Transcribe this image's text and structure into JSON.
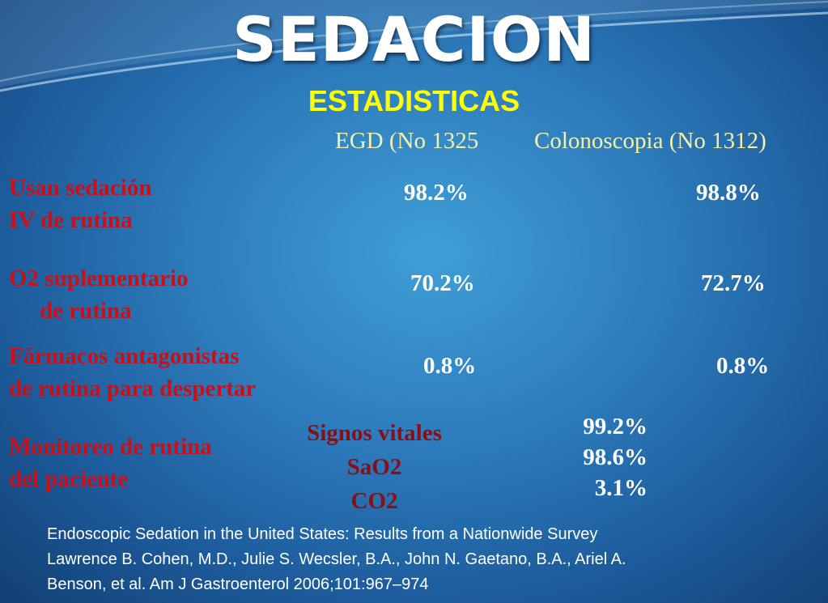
{
  "title": "SEDACION",
  "subtitle": "ESTADISTICAS",
  "columns": {
    "egd": "EGD (No 1325",
    "colon": "Colonoscopia (No 1312)"
  },
  "rows": [
    {
      "label_line1": "Usan sedación",
      "label_line2": "IV de rutina",
      "egd": "98.2%",
      "colon": "98.8%"
    },
    {
      "label_line1": "O2 suplementario",
      "label_line2": "de rutina",
      "egd": "70.2%",
      "colon": "72.7%"
    },
    {
      "label_line1": "Fármacos antagonistas",
      "label_line2": "de rutina para despertar",
      "egd": "0.8%",
      "colon": "0.8%"
    }
  ],
  "monitoring": {
    "label_line1": "Monitoreo de rutina",
    "label_line2": "del paciente",
    "items": [
      {
        "name": "Signos vitales",
        "value": "99.2%"
      },
      {
        "name": "SaO2",
        "value": "98.6%"
      },
      {
        "name": "CO2",
        "value": "3.1%"
      }
    ]
  },
  "reference": {
    "line1": "Endoscopic Sedation in the United States: Results from a Nationwide Survey",
    "line2": "Lawrence B. Cohen, M.D., Julie S. Wecsler, B.A., John N. Gaetano, B.A., Ariel A.",
    "line3": "Benson, et al.  Am J Gastroenterol 2006;101:967–974"
  },
  "colors": {
    "background": "#2f7fbf",
    "title": "#ffffff",
    "subtitle": "#ffff00",
    "row_label": "#c8101a",
    "column_header": "#f4f0a8"
  }
}
